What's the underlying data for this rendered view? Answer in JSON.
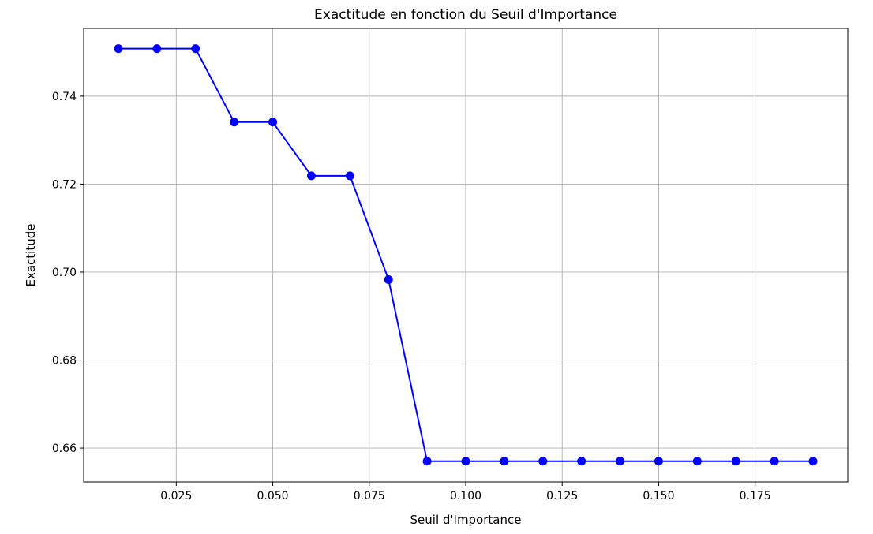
{
  "chart_data": {
    "type": "line",
    "title": "Exactitude en fonction du Seuil d'Importance",
    "xlabel": "Seuil d'Importance",
    "ylabel": "Exactitude",
    "xlim": [
      0.001,
      0.199
    ],
    "ylim": [
      0.6523,
      0.7554
    ],
    "x_ticks": [
      0.025,
      0.05,
      0.075,
      0.1,
      0.125,
      0.15,
      0.175
    ],
    "x_tick_labels": [
      "0.025",
      "0.050",
      "0.075",
      "0.100",
      "0.125",
      "0.150",
      "0.175"
    ],
    "y_ticks": [
      0.66,
      0.68,
      0.7,
      0.72,
      0.74
    ],
    "y_tick_labels": [
      "0.66",
      "0.68",
      "0.70",
      "0.72",
      "0.74"
    ],
    "grid": true,
    "series": [
      {
        "color": "#0000ff",
        "marker": "circle",
        "x": [
          0.01,
          0.02,
          0.03,
          0.04,
          0.05,
          0.06,
          0.07,
          0.08,
          0.09,
          0.1,
          0.11,
          0.12,
          0.13,
          0.14,
          0.15,
          0.16,
          0.17,
          0.18,
          0.19
        ],
        "y": [
          0.7508,
          0.7508,
          0.7508,
          0.7341,
          0.7341,
          0.7219,
          0.7219,
          0.6983,
          0.657,
          0.657,
          0.657,
          0.657,
          0.657,
          0.657,
          0.657,
          0.657,
          0.657,
          0.657,
          0.657
        ]
      }
    ]
  }
}
